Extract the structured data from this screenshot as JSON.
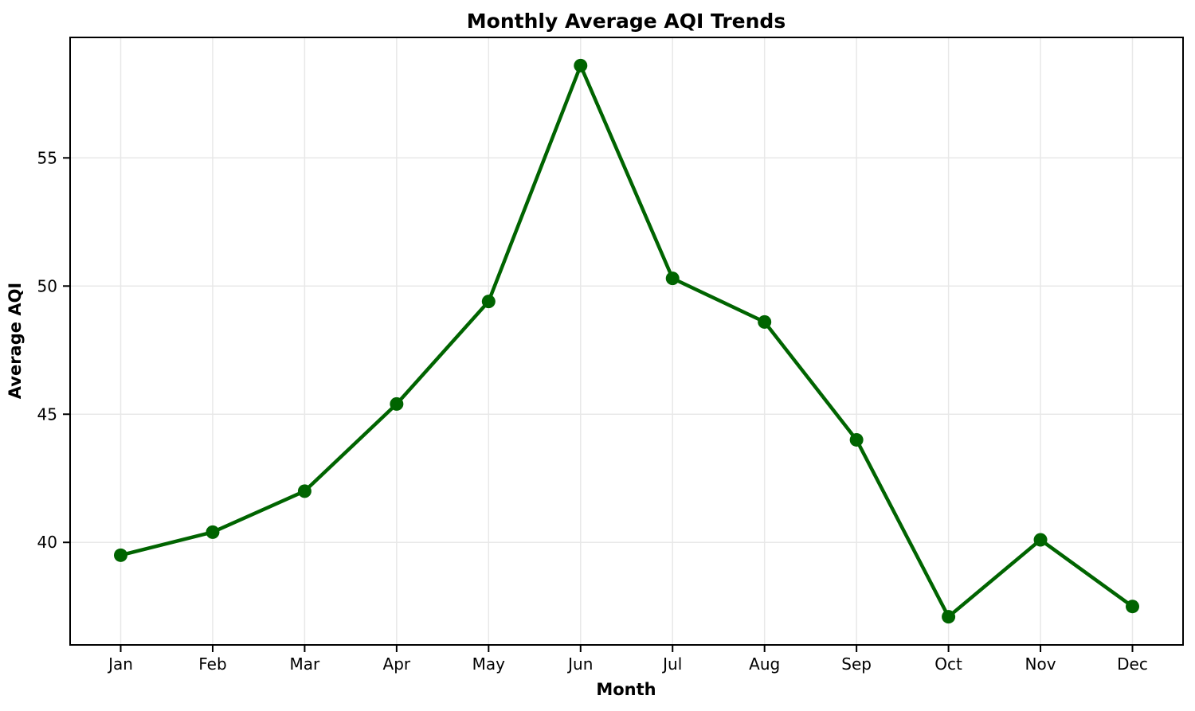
{
  "chart_data": {
    "type": "line",
    "title": "Monthly Average AQI Trends",
    "xlabel": "Month",
    "ylabel": "Average AQI",
    "categories": [
      "Jan",
      "Feb",
      "Mar",
      "Apr",
      "May",
      "Jun",
      "Jul",
      "Aug",
      "Sep",
      "Oct",
      "Nov",
      "Dec"
    ],
    "series": [
      {
        "name": "Average AQI",
        "values": [
          39.5,
          40.4,
          42.0,
          45.4,
          49.4,
          58.6,
          50.3,
          48.6,
          44.0,
          37.1,
          40.1,
          37.5
        ]
      }
    ],
    "yticks": [
      40,
      45,
      50,
      55
    ],
    "ylim": [
      36.0,
      59.7
    ],
    "xlim": [
      -0.55,
      11.55
    ],
    "grid": true,
    "legend_position": "none"
  },
  "colors": {
    "line": "#006400",
    "marker": "#006400",
    "grid": "#e8e8e8",
    "spine": "#000000",
    "background": "#ffffff",
    "text": "#000000"
  }
}
